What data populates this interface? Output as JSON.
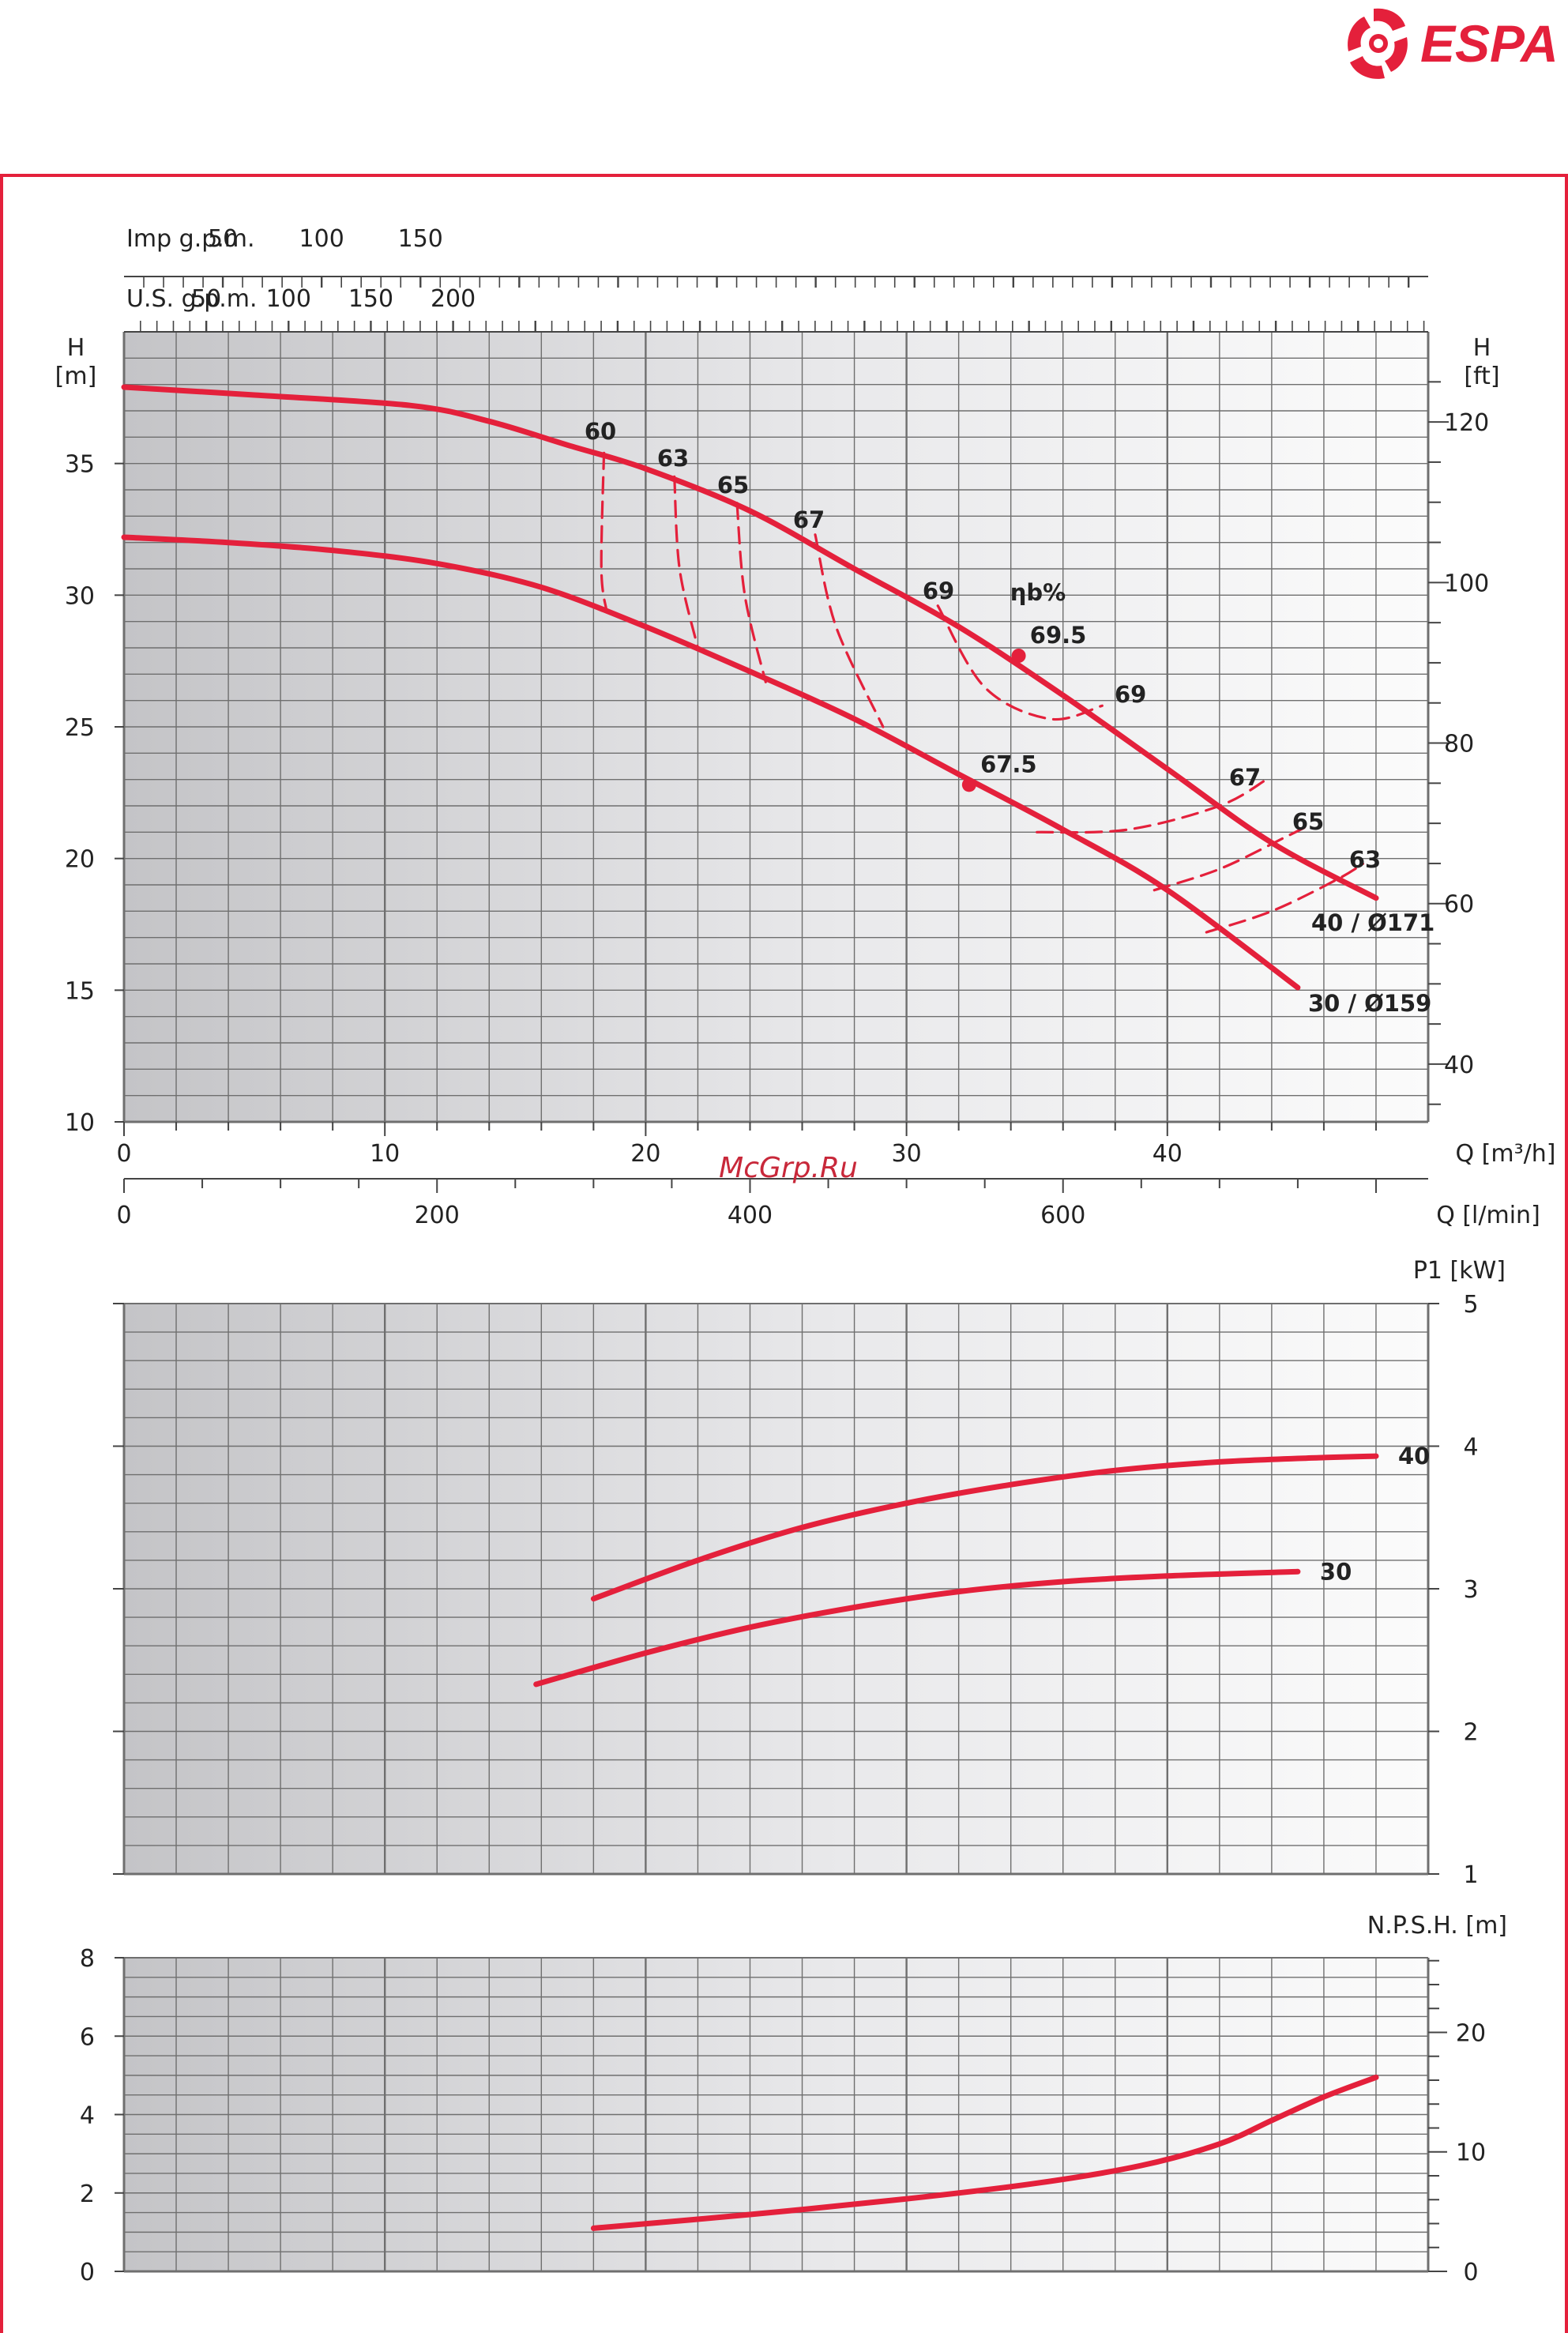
{
  "brand": {
    "name": "ESPA",
    "color": "#e4203b"
  },
  "watermark": "McGrp.Ru",
  "colors": {
    "curve": "#e4203b",
    "grid": "#6f6f6f",
    "frame": "#e4203b"
  },
  "chart_data": [
    {
      "type": "line",
      "id": "head",
      "title": "",
      "x_axis": {
        "label": "Q [m³/h]",
        "range": [
          0,
          50
        ],
        "ticks": [
          0,
          10,
          20,
          30,
          40
        ]
      },
      "secondary_x_axes": [
        {
          "label": "Q [l/min]",
          "ticks": [
            0,
            200,
            400,
            600
          ]
        },
        {
          "label": "U.S. g.p.m.",
          "ticks": [
            50,
            100,
            150,
            200
          ]
        },
        {
          "label": "Imp g.p.m.",
          "ticks": [
            50,
            100,
            150
          ]
        }
      ],
      "y_axis": {
        "label_top": "H",
        "label_unit": "[m]",
        "range": [
          10,
          39
        ],
        "ticks": [
          10,
          15,
          20,
          25,
          30,
          35
        ]
      },
      "y2_axis": {
        "label_top": "H",
        "label_unit": "[ft]",
        "ticks": [
          40,
          60,
          80,
          100,
          120
        ]
      },
      "efficiency_label": "ηb%",
      "grid": true,
      "series": [
        {
          "name": "40 / Ø171",
          "points": [
            [
              0,
              37.9
            ],
            [
              5,
              37.6
            ],
            [
              11,
              37.2
            ],
            [
              14,
              36.6
            ],
            [
              17,
              35.7
            ],
            [
              20,
              34.8
            ],
            [
              24,
              33.2
            ],
            [
              28,
              31.0
            ],
            [
              32,
              28.8
            ],
            [
              36,
              26.2
            ],
            [
              40,
              23.4
            ],
            [
              44,
              20.6
            ],
            [
              48,
              18.5
            ]
          ]
        },
        {
          "name": "30 / Ø159",
          "points": [
            [
              0,
              32.2
            ],
            [
              4,
              32.0
            ],
            [
              8,
              31.7
            ],
            [
              12,
              31.2
            ],
            [
              16,
              30.3
            ],
            [
              20,
              28.8
            ],
            [
              24,
              27.1
            ],
            [
              28,
              25.3
            ],
            [
              32,
              23.2
            ],
            [
              36,
              21.1
            ],
            [
              40,
              18.8
            ],
            [
              45,
              15.1
            ]
          ]
        }
      ],
      "efficiency_curves": [
        {
          "label": "60",
          "points": [
            [
              18.4,
              35.4
            ],
            [
              18.3,
              31.0
            ],
            [
              18.5,
              29.4
            ]
          ]
        },
        {
          "label": "63",
          "points": [
            [
              21.1,
              34.5
            ],
            [
              21.3,
              31.0
            ],
            [
              22.0,
              28.0
            ]
          ]
        },
        {
          "label": "65",
          "points": [
            [
              23.5,
              33.5
            ],
            [
              23.8,
              30.0
            ],
            [
              24.6,
              26.7
            ]
          ]
        },
        {
          "label": "67",
          "points": [
            [
              26.5,
              32.3
            ],
            [
              27.3,
              28.8
            ],
            [
              29.1,
              25.0
            ]
          ]
        },
        {
          "label": "69",
          "points": [
            [
              31.2,
              29.6
            ],
            [
              33.0,
              26.5
            ],
            [
              35.5,
              25.3
            ],
            [
              37.5,
              25.8
            ]
          ]
        },
        {
          "label": "67",
          "points": [
            [
              35.0,
              21.0
            ],
            [
              38.5,
              21.1
            ],
            [
              42.0,
              22.0
            ],
            [
              43.8,
              23.0
            ]
          ]
        },
        {
          "label": "65",
          "points": [
            [
              39.5,
              18.8
            ],
            [
              42.0,
              19.6
            ],
            [
              44.5,
              20.8
            ],
            [
              45.5,
              21.3
            ]
          ]
        },
        {
          "label": "63",
          "points": [
            [
              41.5,
              17.2
            ],
            [
              44.0,
              18.0
            ],
            [
              46.5,
              19.2
            ],
            [
              47.5,
              19.8
            ]
          ]
        }
      ],
      "bep_points": [
        {
          "label": "69.5",
          "q": 34.3,
          "h": 27.7
        },
        {
          "label": "67.5",
          "q": 32.4,
          "h": 22.8
        }
      ],
      "curve_labels": [
        {
          "text": "69",
          "q": 37.8,
          "h": 25.9
        }
      ]
    },
    {
      "type": "line",
      "id": "power",
      "x_axis": {
        "range": [
          0,
          50
        ]
      },
      "y_axis": {
        "label": "P1 [kW]",
        "range": [
          1,
          5
        ],
        "ticks": [
          1,
          2,
          3,
          4,
          5
        ]
      },
      "grid": true,
      "series": [
        {
          "name": "40",
          "points": [
            [
              18,
              2.93
            ],
            [
              22,
              3.2
            ],
            [
              26,
              3.43
            ],
            [
              30,
              3.6
            ],
            [
              34,
              3.73
            ],
            [
              38,
              3.83
            ],
            [
              42,
              3.89
            ],
            [
              46,
              3.92
            ],
            [
              48,
              3.93
            ]
          ]
        },
        {
          "name": "30",
          "points": [
            [
              15.8,
              2.33
            ],
            [
              20,
              2.55
            ],
            [
              24,
              2.73
            ],
            [
              28,
              2.87
            ],
            [
              32,
              2.98
            ],
            [
              36,
              3.05
            ],
            [
              40,
              3.09
            ],
            [
              45,
              3.12
            ]
          ]
        }
      ]
    },
    {
      "type": "line",
      "id": "npsh",
      "x_axis": {
        "range": [
          0,
          50
        ]
      },
      "y_axis": {
        "range": [
          0,
          8
        ],
        "ticks": [
          0,
          2,
          4,
          6,
          8
        ]
      },
      "y2_axis": {
        "label": "N.P.S.H. [m]",
        "ticks": [
          0,
          10,
          20
        ]
      },
      "grid": true,
      "series": [
        {
          "name": "",
          "points": [
            [
              18,
              1.1
            ],
            [
              24,
              1.45
            ],
            [
              30,
              1.85
            ],
            [
              35,
              2.25
            ],
            [
              39,
              2.7
            ],
            [
              42,
              3.25
            ],
            [
              44,
              3.85
            ],
            [
              46,
              4.45
            ],
            [
              48,
              4.95
            ]
          ]
        }
      ]
    }
  ]
}
